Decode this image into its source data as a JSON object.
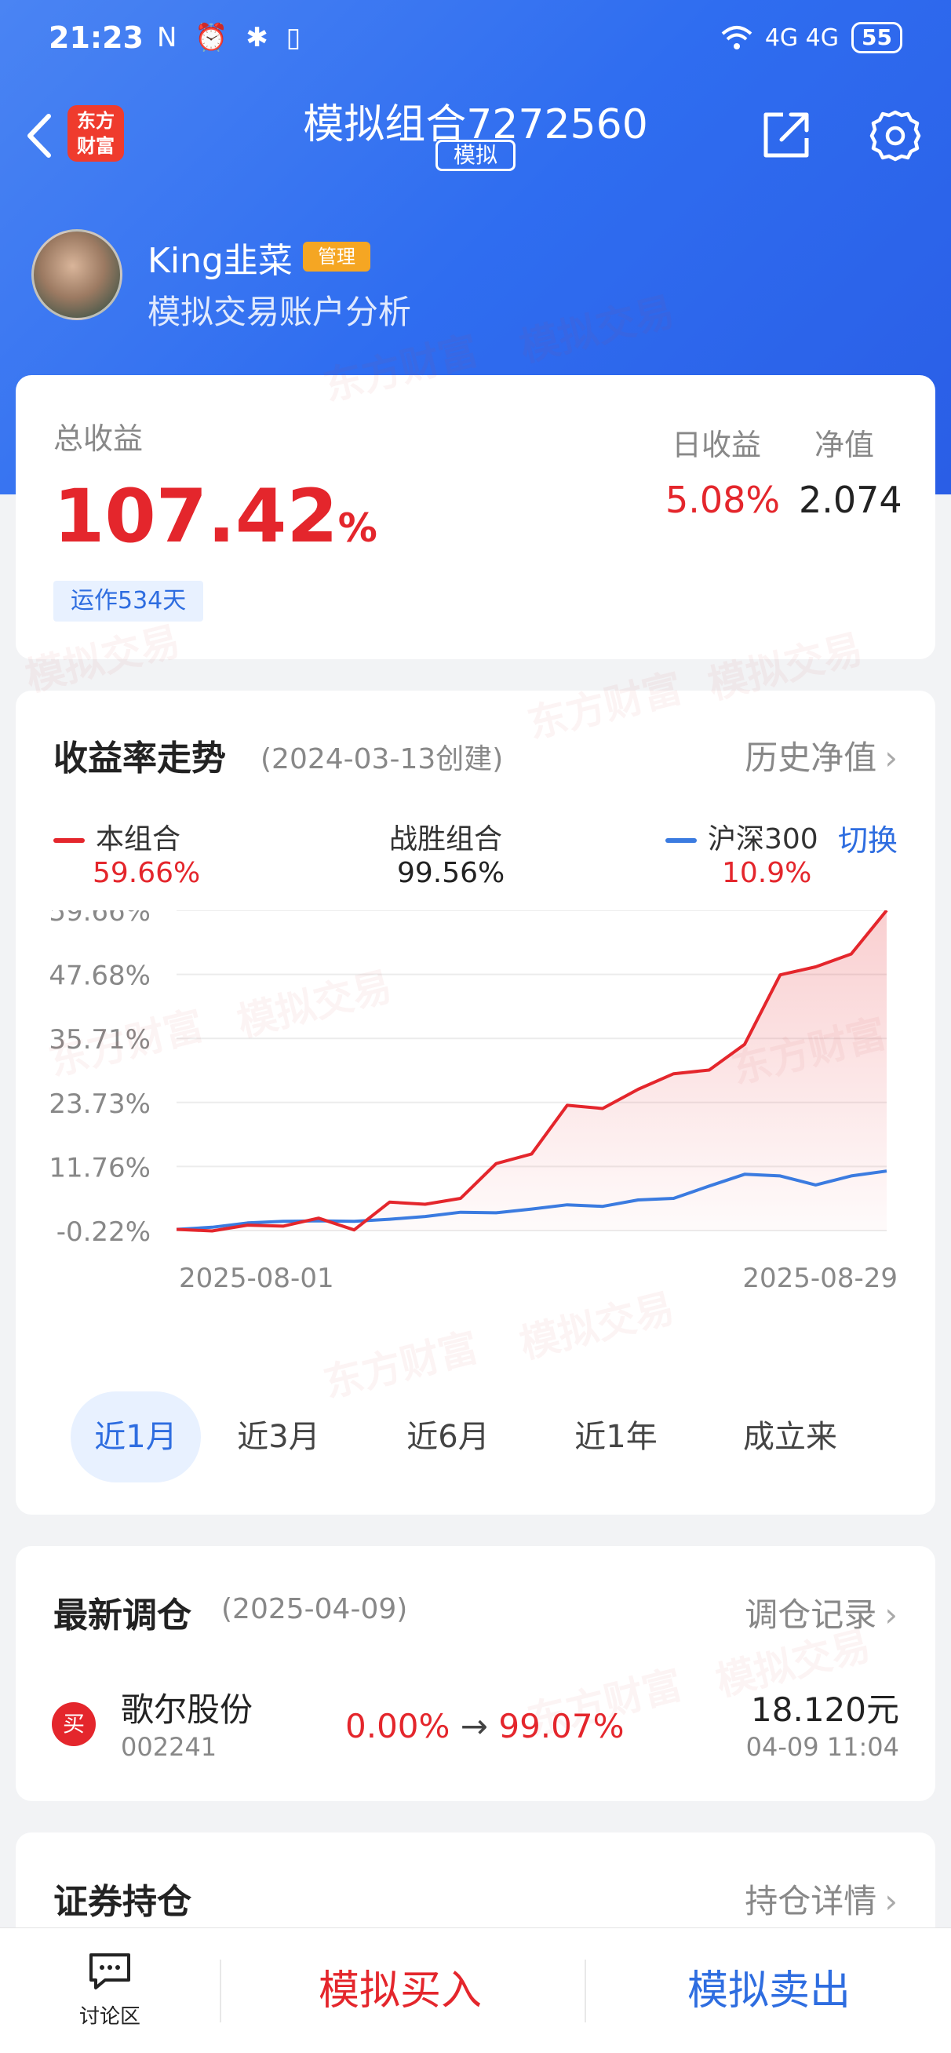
{
  "status_bar": {
    "time": "21:23",
    "left_icons": "N ⏰ ✱ ▯",
    "signal_right": "4G 4G",
    "battery": "55"
  },
  "navbar": {
    "logo_text_line1": "东方",
    "logo_text_line2": "财富",
    "title": "模拟组合7272560",
    "mode_tag": "模拟"
  },
  "profile": {
    "username": "King韭菜",
    "badge": "管理",
    "subtitle": "模拟交易账户分析"
  },
  "summary": {
    "total_label": "总收益",
    "total_return": "107.42",
    "total_unit": "%",
    "running_days": "运作534天",
    "daily_label": "日收益",
    "daily_value": "5.08%",
    "nav_label": "净值",
    "nav_value": "2.074"
  },
  "trend": {
    "title": "收益率走势",
    "created": "(2024-03-13创建)",
    "history_link": "历史净值",
    "legend": {
      "portfolio_label": "本组合",
      "portfolio_value": "59.66%",
      "beat_label": "战胜组合",
      "beat_value": "99.56%",
      "index_label": "沪深300",
      "index_value": "10.9%",
      "switch_label": "切换"
    },
    "period_tabs": [
      "近1月",
      "近3月",
      "近6月",
      "近1年",
      "成立来"
    ],
    "active_tab": 0
  },
  "chart_data": {
    "type": "line",
    "x_start_label": "2025-08-01",
    "x_end_label": "2025-08-29",
    "y_tick_labels": [
      "59.66%",
      "47.68%",
      "35.71%",
      "23.73%",
      "11.76%",
      "-0.22%"
    ],
    "ylim": [
      -0.22,
      59.66
    ],
    "grid": true,
    "series": [
      {
        "name": "本组合",
        "color": "#e4262c",
        "values": [
          0,
          -0.3,
          0.8,
          0.6,
          2.1,
          -0.1,
          5.1,
          4.7,
          5.8,
          12.3,
          14.1,
          23.2,
          22.6,
          26.2,
          29.1,
          29.8,
          34.6,
          47.6,
          49.1,
          51.5,
          59.66
        ]
      },
      {
        "name": "沪深300",
        "color": "#3b7be0",
        "values": [
          0,
          0.4,
          1.2,
          1.5,
          1.6,
          1.5,
          1.9,
          2.4,
          3.2,
          3.1,
          3.8,
          4.6,
          4.3,
          5.5,
          5.8,
          8.1,
          10.3,
          10.0,
          8.3,
          10.0,
          10.9
        ]
      }
    ]
  },
  "rebalance": {
    "title": "最新调仓",
    "date": "(2025-04-09)",
    "record_link": "调仓记录",
    "trade": {
      "badge": "买",
      "name": "歌尔股份",
      "code": "002241",
      "from_pct": "0.00%",
      "arrow": "→",
      "to_pct": "99.07%",
      "price": "18.120元",
      "time": "04-09  11:04"
    }
  },
  "holdings": {
    "title": "证券持仓",
    "detail_link": "持仓详情"
  },
  "bottom_bar": {
    "discuss_label": "讨论区",
    "buy_label": "模拟买入",
    "sell_label": "模拟卖出"
  },
  "watermark": {
    "brand": "东方财富",
    "tag": "模拟交易"
  },
  "colors": {
    "header_blue": "#2f6df0",
    "up_red": "#e4262c",
    "link_blue": "#2e6de0",
    "badge_orange": "#f5a623"
  }
}
